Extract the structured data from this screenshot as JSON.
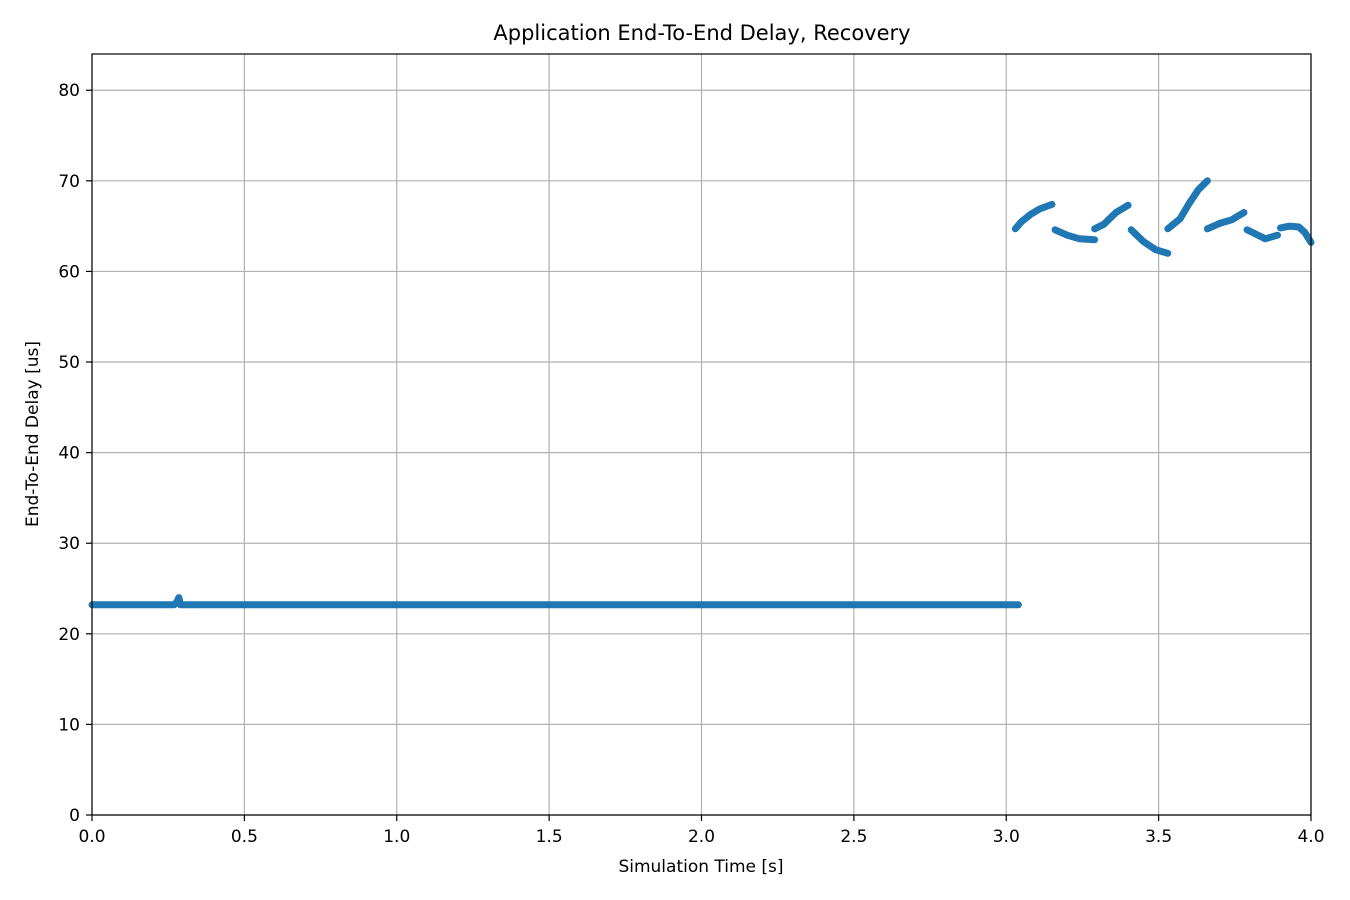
{
  "chart_data": {
    "type": "scatter",
    "title": "Application End-To-End Delay, Recovery",
    "xlabel": "Simulation Time [s]",
    "ylabel": "End-To-End Delay [us]",
    "xlim": [
      0,
      4.0
    ],
    "ylim": [
      0,
      84
    ],
    "xticks": [
      0.0,
      0.5,
      1.0,
      1.5,
      2.0,
      2.5,
      3.0,
      3.5,
      4.0
    ],
    "xtick_labels": [
      "0.0",
      "0.5",
      "1.0",
      "1.5",
      "2.0",
      "2.5",
      "3.0",
      "3.5",
      "4.0"
    ],
    "yticks": [
      0,
      10,
      20,
      30,
      40,
      50,
      60,
      70,
      80
    ],
    "ytick_labels": [
      "0",
      "10",
      "20",
      "30",
      "40",
      "50",
      "60",
      "70",
      "80"
    ],
    "grid": true,
    "color": "#1f77b4",
    "series": [
      {
        "segments": [
          [
            [
              0.0,
              23.2
            ],
            [
              0.27,
              23.2
            ],
            [
              0.28,
              23.6
            ],
            [
              0.285,
              24.0
            ],
            [
              0.29,
              23.2
            ],
            [
              3.04,
              23.2
            ]
          ],
          [
            [
              3.03,
              64.7
            ],
            [
              3.05,
              65.5
            ],
            [
              3.08,
              66.3
            ],
            [
              3.11,
              66.9
            ],
            [
              3.15,
              67.4
            ]
          ],
          [
            [
              3.16,
              64.6
            ],
            [
              3.2,
              64.0
            ],
            [
              3.24,
              63.6
            ],
            [
              3.29,
              63.5
            ]
          ],
          [
            [
              3.29,
              64.7
            ],
            [
              3.32,
              65.2
            ],
            [
              3.36,
              66.5
            ],
            [
              3.4,
              67.3
            ]
          ],
          [
            [
              3.41,
              64.6
            ],
            [
              3.45,
              63.3
            ],
            [
              3.49,
              62.4
            ],
            [
              3.53,
              62.0
            ]
          ],
          [
            [
              3.53,
              64.7
            ],
            [
              3.57,
              65.8
            ],
            [
              3.6,
              67.5
            ],
            [
              3.63,
              69.0
            ],
            [
              3.66,
              70.0
            ]
          ],
          [
            [
              3.66,
              64.7
            ],
            [
              3.7,
              65.3
            ],
            [
              3.74,
              65.7
            ],
            [
              3.78,
              66.5
            ]
          ],
          [
            [
              3.79,
              64.6
            ],
            [
              3.82,
              64.1
            ],
            [
              3.85,
              63.6
            ],
            [
              3.89,
              64.0
            ]
          ],
          [
            [
              3.9,
              64.8
            ],
            [
              3.93,
              65.0
            ],
            [
              3.96,
              64.9
            ],
            [
              3.98,
              64.3
            ],
            [
              4.0,
              63.2
            ]
          ]
        ]
      }
    ]
  }
}
